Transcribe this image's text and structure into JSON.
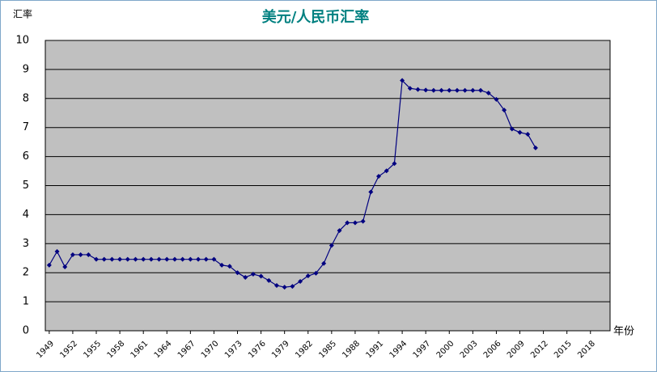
{
  "chart_data": {
    "type": "line",
    "title": "美元/人民币汇率",
    "y_label": "汇率",
    "x_label": "年份",
    "x": [
      1949,
      1950,
      1951,
      1952,
      1953,
      1954,
      1955,
      1956,
      1957,
      1958,
      1959,
      1960,
      1961,
      1962,
      1963,
      1964,
      1965,
      1966,
      1967,
      1968,
      1969,
      1970,
      1971,
      1972,
      1973,
      1974,
      1975,
      1976,
      1977,
      1978,
      1979,
      1980,
      1981,
      1982,
      1983,
      1984,
      1985,
      1986,
      1987,
      1988,
      1989,
      1990,
      1991,
      1992,
      1993,
      1994,
      1995,
      1996,
      1997,
      1998,
      1999,
      2000,
      2001,
      2002,
      2003,
      2004,
      2005,
      2006,
      2007,
      2008,
      2009,
      2010,
      2011
    ],
    "series": [
      {
        "color": "#000080",
        "values": [
          2.26,
          2.73,
          2.2,
          2.62,
          2.62,
          2.62,
          2.46,
          2.46,
          2.46,
          2.46,
          2.46,
          2.46,
          2.46,
          2.46,
          2.46,
          2.46,
          2.46,
          2.46,
          2.46,
          2.46,
          2.46,
          2.46,
          2.26,
          2.22,
          2.0,
          1.84,
          1.95,
          1.88,
          1.73,
          1.56,
          1.5,
          1.53,
          1.7,
          1.89,
          1.98,
          2.32,
          2.94,
          3.45,
          3.72,
          3.72,
          3.77,
          4.78,
          5.32,
          5.51,
          5.76,
          8.62,
          8.35,
          8.31,
          8.29,
          8.28,
          8.28,
          8.28,
          8.28,
          8.28,
          8.28,
          8.28,
          8.19,
          7.97,
          7.6,
          6.95,
          6.83,
          6.77,
          6.3
        ]
      }
    ],
    "xlim": [
      1948.5,
      2020.5
    ],
    "xticks": [
      1949,
      1952,
      1955,
      1958,
      1961,
      1964,
      1967,
      1970,
      1973,
      1976,
      1979,
      1982,
      1985,
      1988,
      1991,
      1994,
      1997,
      2000,
      2003,
      2006,
      2009,
      2012,
      2015,
      2018
    ],
    "ylim": [
      0,
      10
    ],
    "yticks": [
      0,
      1,
      2,
      3,
      4,
      5,
      6,
      7,
      8,
      9,
      10
    ],
    "grid": true,
    "plot_background": "#c0c0c0"
  }
}
